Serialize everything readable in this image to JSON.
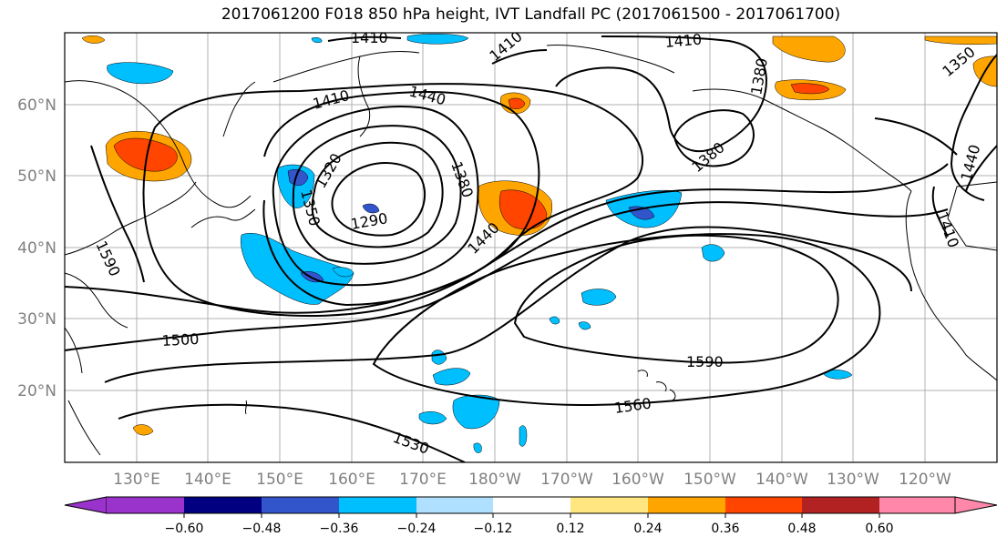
{
  "title": "2017061200 F018 850 hPa height, IVT Landfall PC (2017061500 - 2017061700)",
  "map": {
    "lat_labels": [
      "60°N",
      "50°N",
      "40°N",
      "30°N",
      "20°N"
    ],
    "lon_labels": [
      "130°E",
      "140°E",
      "150°E",
      "160°E",
      "170°E",
      "180°W",
      "170°W",
      "160°W",
      "150°W",
      "140°W",
      "130°W",
      "120°W"
    ],
    "contour_labels": [
      "1410",
      "1410",
      "1410",
      "1410",
      "1380",
      "1350",
      "1440",
      "1320",
      "1350",
      "1380",
      "1290",
      "1440",
      "1380",
      "1440",
      "1410",
      "1500",
      "1590",
      "1560",
      "1530",
      "1590"
    ]
  },
  "colorbar": {
    "tick_labels": [
      "−0.60",
      "−0.48",
      "−0.36",
      "−0.24",
      "−0.12",
      "0.12",
      "0.24",
      "0.36",
      "0.48",
      "0.60"
    ],
    "colors": [
      "#9933cc",
      "#000080",
      "#3355cc",
      "#00bfff",
      "#b0e0ff",
      "#ffffff",
      "#ffe680",
      "#ffa500",
      "#ff4500",
      "#b22222",
      "#ff88aa"
    ]
  }
}
